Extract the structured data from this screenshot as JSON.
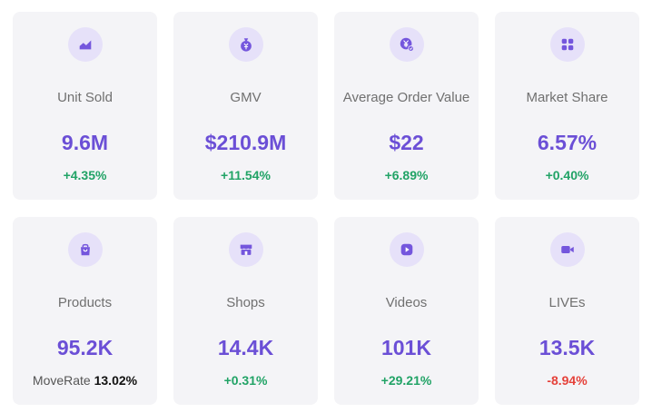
{
  "colors": {
    "accent": "#6b4fd6",
    "icon_bg": "#e6e1f9",
    "positive": "#21a366",
    "negative": "#e5413a",
    "card_bg": "#f4f4f7"
  },
  "cards": [
    {
      "icon": "trend-chart-icon",
      "label": "Unit Sold",
      "value": "9.6M",
      "change": "+4.35%"
    },
    {
      "icon": "money-bag-icon",
      "label": "GMV",
      "value": "$210.9M",
      "change": "+11.54%"
    },
    {
      "icon": "yen-coin-icon",
      "label": "Average Order Value",
      "value": "$22",
      "change": "+6.89%"
    },
    {
      "icon": "grid-apps-icon",
      "label": "Market Share",
      "value": "6.57%",
      "change": "+0.40%"
    },
    {
      "icon": "shopping-bag-icon",
      "label": "Products",
      "value": "95.2K",
      "move_label": "MoveRate",
      "move_value": "13.02%"
    },
    {
      "icon": "storefront-icon",
      "label": "Shops",
      "value": "14.4K",
      "change": "+0.31%"
    },
    {
      "icon": "play-video-icon",
      "label": "Videos",
      "value": "101K",
      "change": "+29.21%"
    },
    {
      "icon": "video-camera-icon",
      "label": "LIVEs",
      "value": "13.5K",
      "change": "-8.94%"
    }
  ]
}
